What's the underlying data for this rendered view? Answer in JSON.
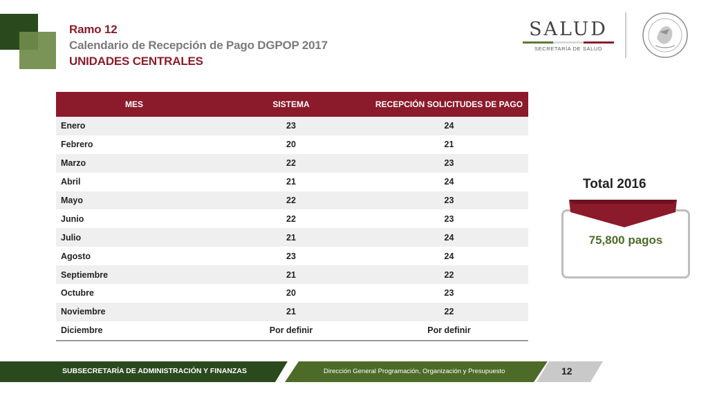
{
  "heading": {
    "ramo": "Ramo 12",
    "title": "Calendario de Recepción de Pago DGPOP 2017",
    "subtitle": "UNIDADES CENTRALES"
  },
  "logo": {
    "word": "SALUD",
    "sub": "SECRETARÍA DE SALUD"
  },
  "table": {
    "headers": [
      "MES",
      "SISTEMA",
      "RECEPCIÓN SOLICITUDES DE PAGO"
    ],
    "rows": [
      [
        "Enero",
        "23",
        "24"
      ],
      [
        "Febrero",
        "20",
        "21"
      ],
      [
        "Marzo",
        "22",
        "23"
      ],
      [
        "Abril",
        "21",
        "24"
      ],
      [
        "Mayo",
        "22",
        "23"
      ],
      [
        "Junio",
        "22",
        "23"
      ],
      [
        "Julio",
        "21",
        "24"
      ],
      [
        "Agosto",
        "23",
        "24"
      ],
      [
        "Septiembre",
        "21",
        "22"
      ],
      [
        "Octubre",
        "20",
        "23"
      ],
      [
        "Noviembre",
        "21",
        "22"
      ],
      [
        "Diciembre",
        "Por definir",
        "Por definir"
      ]
    ]
  },
  "total": {
    "title": "Total 2016",
    "value": "75,800 pagos"
  },
  "footer": {
    "left": "SUBSECRETARÍA DE ADMINISTRACIÓN Y FINANZAS",
    "middle": "Dirección General Programación, Organización y Presupuesto",
    "page": "12"
  },
  "colors": {
    "guinda": "#8b1a2b",
    "dark_green": "#2a4a1e",
    "green": "#4d6b28",
    "gray": "#bdbdbd"
  }
}
